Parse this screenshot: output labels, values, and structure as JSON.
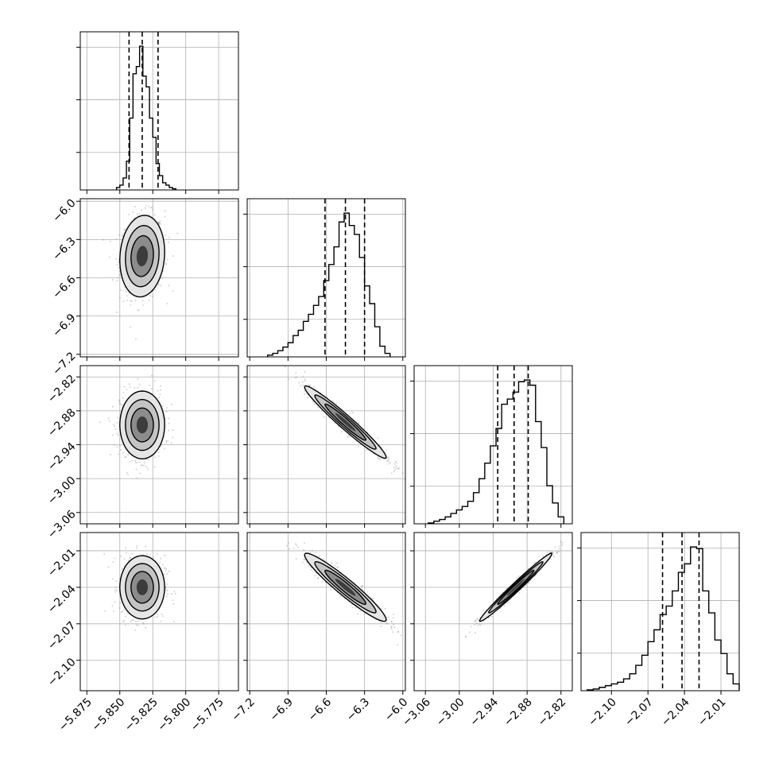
{
  "chart_data": {
    "type": "corner",
    "parameters": [
      {
        "name": "",
        "range": [
          -5.88,
          -5.76
        ],
        "ticks": [
          -5.875,
          -5.85,
          -5.825,
          -5.8,
          -5.775
        ],
        "tick_labels": [
          "−5.875",
          "−5.850",
          "−5.825",
          "−5.800",
          "−5.775"
        ],
        "quantiles": [
          -5.843,
          -5.833,
          -5.821
        ],
        "histogram": {
          "bins": [
            -5.8525,
            -5.85,
            -5.8475,
            -5.845,
            -5.8425,
            -5.84,
            -5.8375,
            -5.835,
            -5.8325,
            -5.83,
            -5.8275,
            -5.825,
            -5.8225,
            -5.82,
            -5.8175,
            -5.815,
            -5.8125,
            -5.81
          ],
          "heights": [
            2,
            4,
            10,
            24,
            60,
            97,
            103,
            120,
            95,
            86,
            60,
            44,
            22,
            12,
            6,
            4,
            2,
            1
          ]
        }
      },
      {
        "name": "",
        "range": [
          -7.22,
          -5.98
        ],
        "ticks": [
          -7.2,
          -6.9,
          -6.6,
          -6.3,
          -6.0
        ],
        "tick_labels": [
          "−7.2",
          "−6.9",
          "−6.6",
          "−6.3",
          "−6.0"
        ],
        "quantiles": [
          -6.61,
          -6.45,
          -6.3
        ],
        "histogram": {
          "bins": [
            -7.06,
            -7.02,
            -6.98,
            -6.94,
            -6.9,
            -6.86,
            -6.82,
            -6.78,
            -6.74,
            -6.7,
            -6.66,
            -6.62,
            -6.58,
            -6.54,
            -6.5,
            -6.46,
            -6.42,
            -6.38,
            -6.34,
            -6.3,
            -6.26,
            -6.22,
            -6.18,
            -6.14
          ],
          "heights": [
            2,
            4,
            7,
            11,
            16,
            24,
            30,
            40,
            48,
            58,
            68,
            86,
            104,
            124,
            152,
            162,
            148,
            138,
            112,
            80,
            60,
            34,
            12,
            4
          ]
        }
      },
      {
        "name": "",
        "range": [
          -3.08,
          -2.8
        ],
        "ticks": [
          -3.06,
          -3.0,
          -2.94,
          -2.88,
          -2.82
        ],
        "tick_labels": [
          "−3.06",
          "−3.00",
          "−2.94",
          "−2.88",
          "−2.82"
        ],
        "quantiles": [
          -2.932,
          -2.903,
          -2.878
        ],
        "histogram": {
          "bins": [
            -3.055,
            -3.045,
            -3.035,
            -3.025,
            -3.015,
            -3.005,
            -2.995,
            -2.985,
            -2.975,
            -2.965,
            -2.955,
            -2.945,
            -2.935,
            -2.925,
            -2.915,
            -2.905,
            -2.895,
            -2.885,
            -2.875,
            -2.865,
            -2.855,
            -2.845,
            -2.835,
            -2.825
          ],
          "heights": [
            1,
            3,
            5,
            8,
            12,
            16,
            20,
            26,
            36,
            52,
            70,
            90,
            110,
            138,
            144,
            152,
            164,
            166,
            160,
            118,
            88,
            44,
            24,
            8
          ]
        }
      },
      {
        "name": "",
        "range": [
          -2.125,
          -1.995
        ],
        "ticks": [
          -2.1,
          -2.07,
          -2.04,
          -2.01
        ],
        "tick_labels": [
          "−2.10",
          "−2.07",
          "−2.04",
          "−2.01"
        ],
        "quantiles": [
          -2.058,
          -2.042,
          -2.028
        ],
        "histogram": {
          "bins": [
            -2.12,
            -2.115,
            -2.11,
            -2.105,
            -2.1,
            -2.095,
            -2.09,
            -2.085,
            -2.08,
            -2.075,
            -2.07,
            -2.065,
            -2.06,
            -2.055,
            -2.05,
            -2.045,
            -2.04,
            -2.035,
            -2.03,
            -2.025,
            -2.02,
            -2.015,
            -2.01,
            -2.005,
            -2.0
          ],
          "heights": [
            1,
            2,
            4,
            6,
            8,
            10,
            14,
            20,
            30,
            42,
            58,
            72,
            90,
            100,
            118,
            140,
            150,
            170,
            168,
            118,
            92,
            60,
            44,
            20,
            8
          ]
        }
      }
    ],
    "pairs": [
      {
        "row": 1,
        "col": 0,
        "mean": [
          -5.833,
          -6.43
        ],
        "sd": [
          0.0085,
          0.16
        ],
        "rho": 0.1
      },
      {
        "row": 2,
        "col": 0,
        "mean": [
          -5.833,
          -2.905
        ],
        "sd": [
          0.0085,
          0.03
        ],
        "rho": 0.0
      },
      {
        "row": 3,
        "col": 0,
        "mean": [
          -5.833,
          -2.04
        ],
        "sd": [
          0.0085,
          0.013
        ],
        "rho": 0.0
      },
      {
        "row": 2,
        "col": 1,
        "mean": [
          -6.45,
          -2.9
        ],
        "sd": [
          0.16,
          0.032
        ],
        "rho": -0.97
      },
      {
        "row": 3,
        "col": 1,
        "mean": [
          -6.45,
          -2.04
        ],
        "sd": [
          0.16,
          0.014
        ],
        "rho": -0.95
      },
      {
        "row": 3,
        "col": 2,
        "mean": [
          -2.9,
          -2.04
        ],
        "sd": [
          0.032,
          0.014
        ],
        "rho": 0.985
      }
    ],
    "contour_levels_sigma": [
      0.5,
      1.0,
      1.5,
      2.0
    ],
    "quantile_line_style": "dashed",
    "grid": true,
    "colors": {
      "line": "#000000",
      "grid": "#b0b0b0",
      "scatter": "#808080"
    }
  }
}
